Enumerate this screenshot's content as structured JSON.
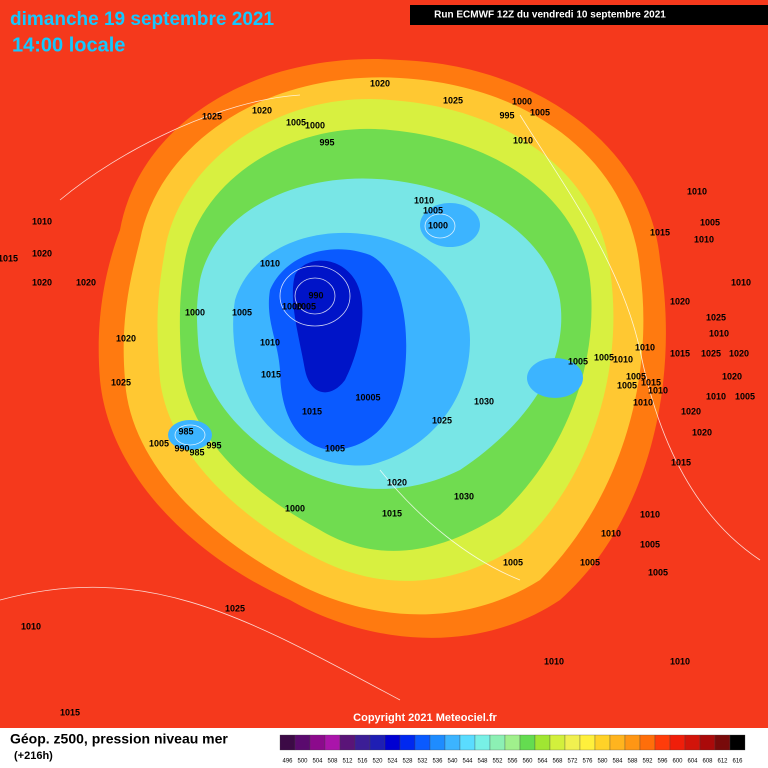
{
  "header": {
    "title": "dimanche 19 septembre 2021",
    "subtitle": "14:00 locale",
    "run": "Run ECMWF 12Z du vendredi 10 septembre 2021"
  },
  "isobar_labels": [
    "1020",
    "1025",
    "1020",
    "1025",
    "1000",
    "995",
    "1005",
    "1010",
    "1005",
    "1000",
    "995",
    "1010",
    "1020",
    "1015",
    "1020",
    "1020",
    "1010",
    "990",
    "1000",
    "1005",
    "1000",
    "1005",
    "1020",
    "1010",
    "1015",
    "1025",
    "1015",
    "10005",
    "1010",
    "1005",
    "1000",
    "1030",
    "1025",
    "985",
    "1005",
    "990",
    "985",
    "995",
    "1005",
    "1000",
    "1020",
    "1015",
    "1030",
    "1005",
    "1005",
    "1010",
    "1010",
    "1025",
    "1010",
    "1015",
    "1010",
    "1005",
    "1015",
    "1010",
    "1010",
    "1020",
    "1025",
    "1010",
    "1010",
    "1015",
    "1025",
    "1020",
    "1005",
    "1005",
    "1010",
    "1020",
    "1005",
    "1005",
    "1015",
    "1010",
    "1010",
    "1010",
    "1005",
    "1020",
    "1020",
    "1015",
    "1010",
    "1010",
    "1005",
    "1005"
  ],
  "copyright": "Copyright 2021 Meteociel.fr",
  "legend": {
    "title": "Géop. z500, pression niveau mer",
    "lead": "(+216h)",
    "labels": [
      "496",
      "500",
      "504",
      "508",
      "512",
      "516",
      "520",
      "524",
      "528",
      "532",
      "536",
      "540",
      "544",
      "548",
      "552",
      "556",
      "560",
      "564",
      "568",
      "572",
      "576",
      "580",
      "584",
      "588",
      "592",
      "596",
      "600",
      "604",
      "608",
      "612",
      "616"
    ],
    "colors": [
      "#3c0a46",
      "#5a0a6e",
      "#8c0a8c",
      "#aa14aa",
      "#5a1478",
      "#3c1e96",
      "#1e1eb4",
      "#0000d2",
      "#0028f0",
      "#0a5aff",
      "#1e8cff",
      "#3cb4ff",
      "#5adcff",
      "#78f0e6",
      "#8cf0b4",
      "#a0f08c",
      "#64dc50",
      "#a0e632",
      "#d2f03c",
      "#f0f050",
      "#fff03c",
      "#ffd228",
      "#ffb41e",
      "#ff9614",
      "#ff6e0a",
      "#ff3c0a",
      "#f01e0a",
      "#d2140a",
      "#aa0a0a",
      "#780a0a",
      "#000000"
    ]
  }
}
